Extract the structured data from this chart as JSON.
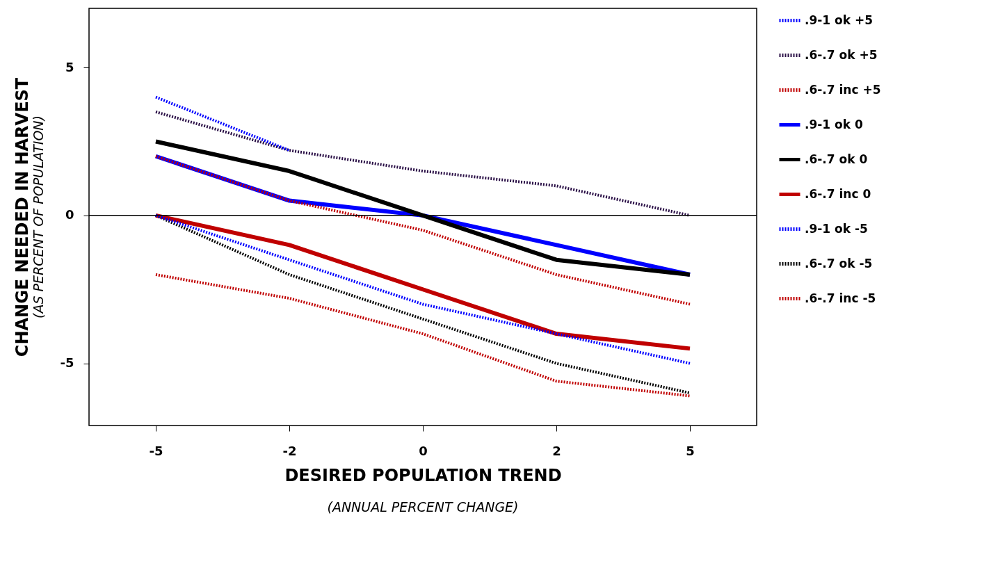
{
  "chart_data": {
    "type": "line",
    "xlabel": "DESIRED POPULATION TREND",
    "ylabel": "CHANGE NEEDED IN HARVEST",
    "annotations": [
      "(ANNUAL PERCENT CHANGE)",
      "(AS PERCENT OF POPULATION)"
    ],
    "categories": [
      "-5",
      "-2",
      "0",
      "2",
      "5"
    ],
    "ylim": [
      -7.1,
      7
    ],
    "yticks": [
      -5,
      0,
      5
    ],
    "grid": false,
    "legend": "right",
    "marker": "none",
    "ref_lines": [
      {
        "axis": "y",
        "value": 0,
        "color": "#000000",
        "line_style": "solid"
      }
    ],
    "series": [
      {
        "name": ".9-1 ok +5",
        "color": "#0000ff",
        "line_style": "dotted",
        "values": [
          4.0,
          2.2,
          null,
          null,
          null
        ]
      },
      {
        "name": ".6-.7 ok +5",
        "color": "#2a0f46",
        "line_style": "dotted",
        "values": [
          3.5,
          2.2,
          1.5,
          1.0,
          0
        ]
      },
      {
        "name": ".6-.7 inc +5",
        "color": "#c00000",
        "line_style": "dotted",
        "values": [
          2.0,
          0.5,
          -0.5,
          -2.0,
          -3.0
        ]
      },
      {
        "name": ".9-1 ok 0",
        "color": "#0000ff",
        "line_style": "solid",
        "values": [
          2.0,
          0.5,
          0,
          -1.0,
          -2.0
        ]
      },
      {
        "name": ".6-.7 ok 0",
        "color": "#000000",
        "line_style": "solid",
        "values": [
          2.5,
          1.5,
          0,
          -1.5,
          -2.0
        ]
      },
      {
        "name": ".6-.7 inc 0",
        "color": "#c00000",
        "line_style": "solid",
        "values": [
          0,
          -1.0,
          -2.5,
          -4.0,
          -4.5
        ]
      },
      {
        "name": ".9-1 ok -5",
        "color": "#0000ff",
        "line_style": "dotted",
        "values": [
          0,
          -1.5,
          -3.0,
          -4.0,
          -5.0
        ]
      },
      {
        "name": ".6-.7 ok -5",
        "color": "#000000",
        "line_style": "dotted",
        "values": [
          0,
          -2.0,
          -3.5,
          -5.0,
          -6.0
        ]
      },
      {
        "name": ".6-.7 inc -5",
        "color": "#c00000",
        "line_style": "dotted",
        "values": [
          -2.0,
          -2.8,
          -4.0,
          -5.6,
          -6.1
        ]
      }
    ]
  }
}
